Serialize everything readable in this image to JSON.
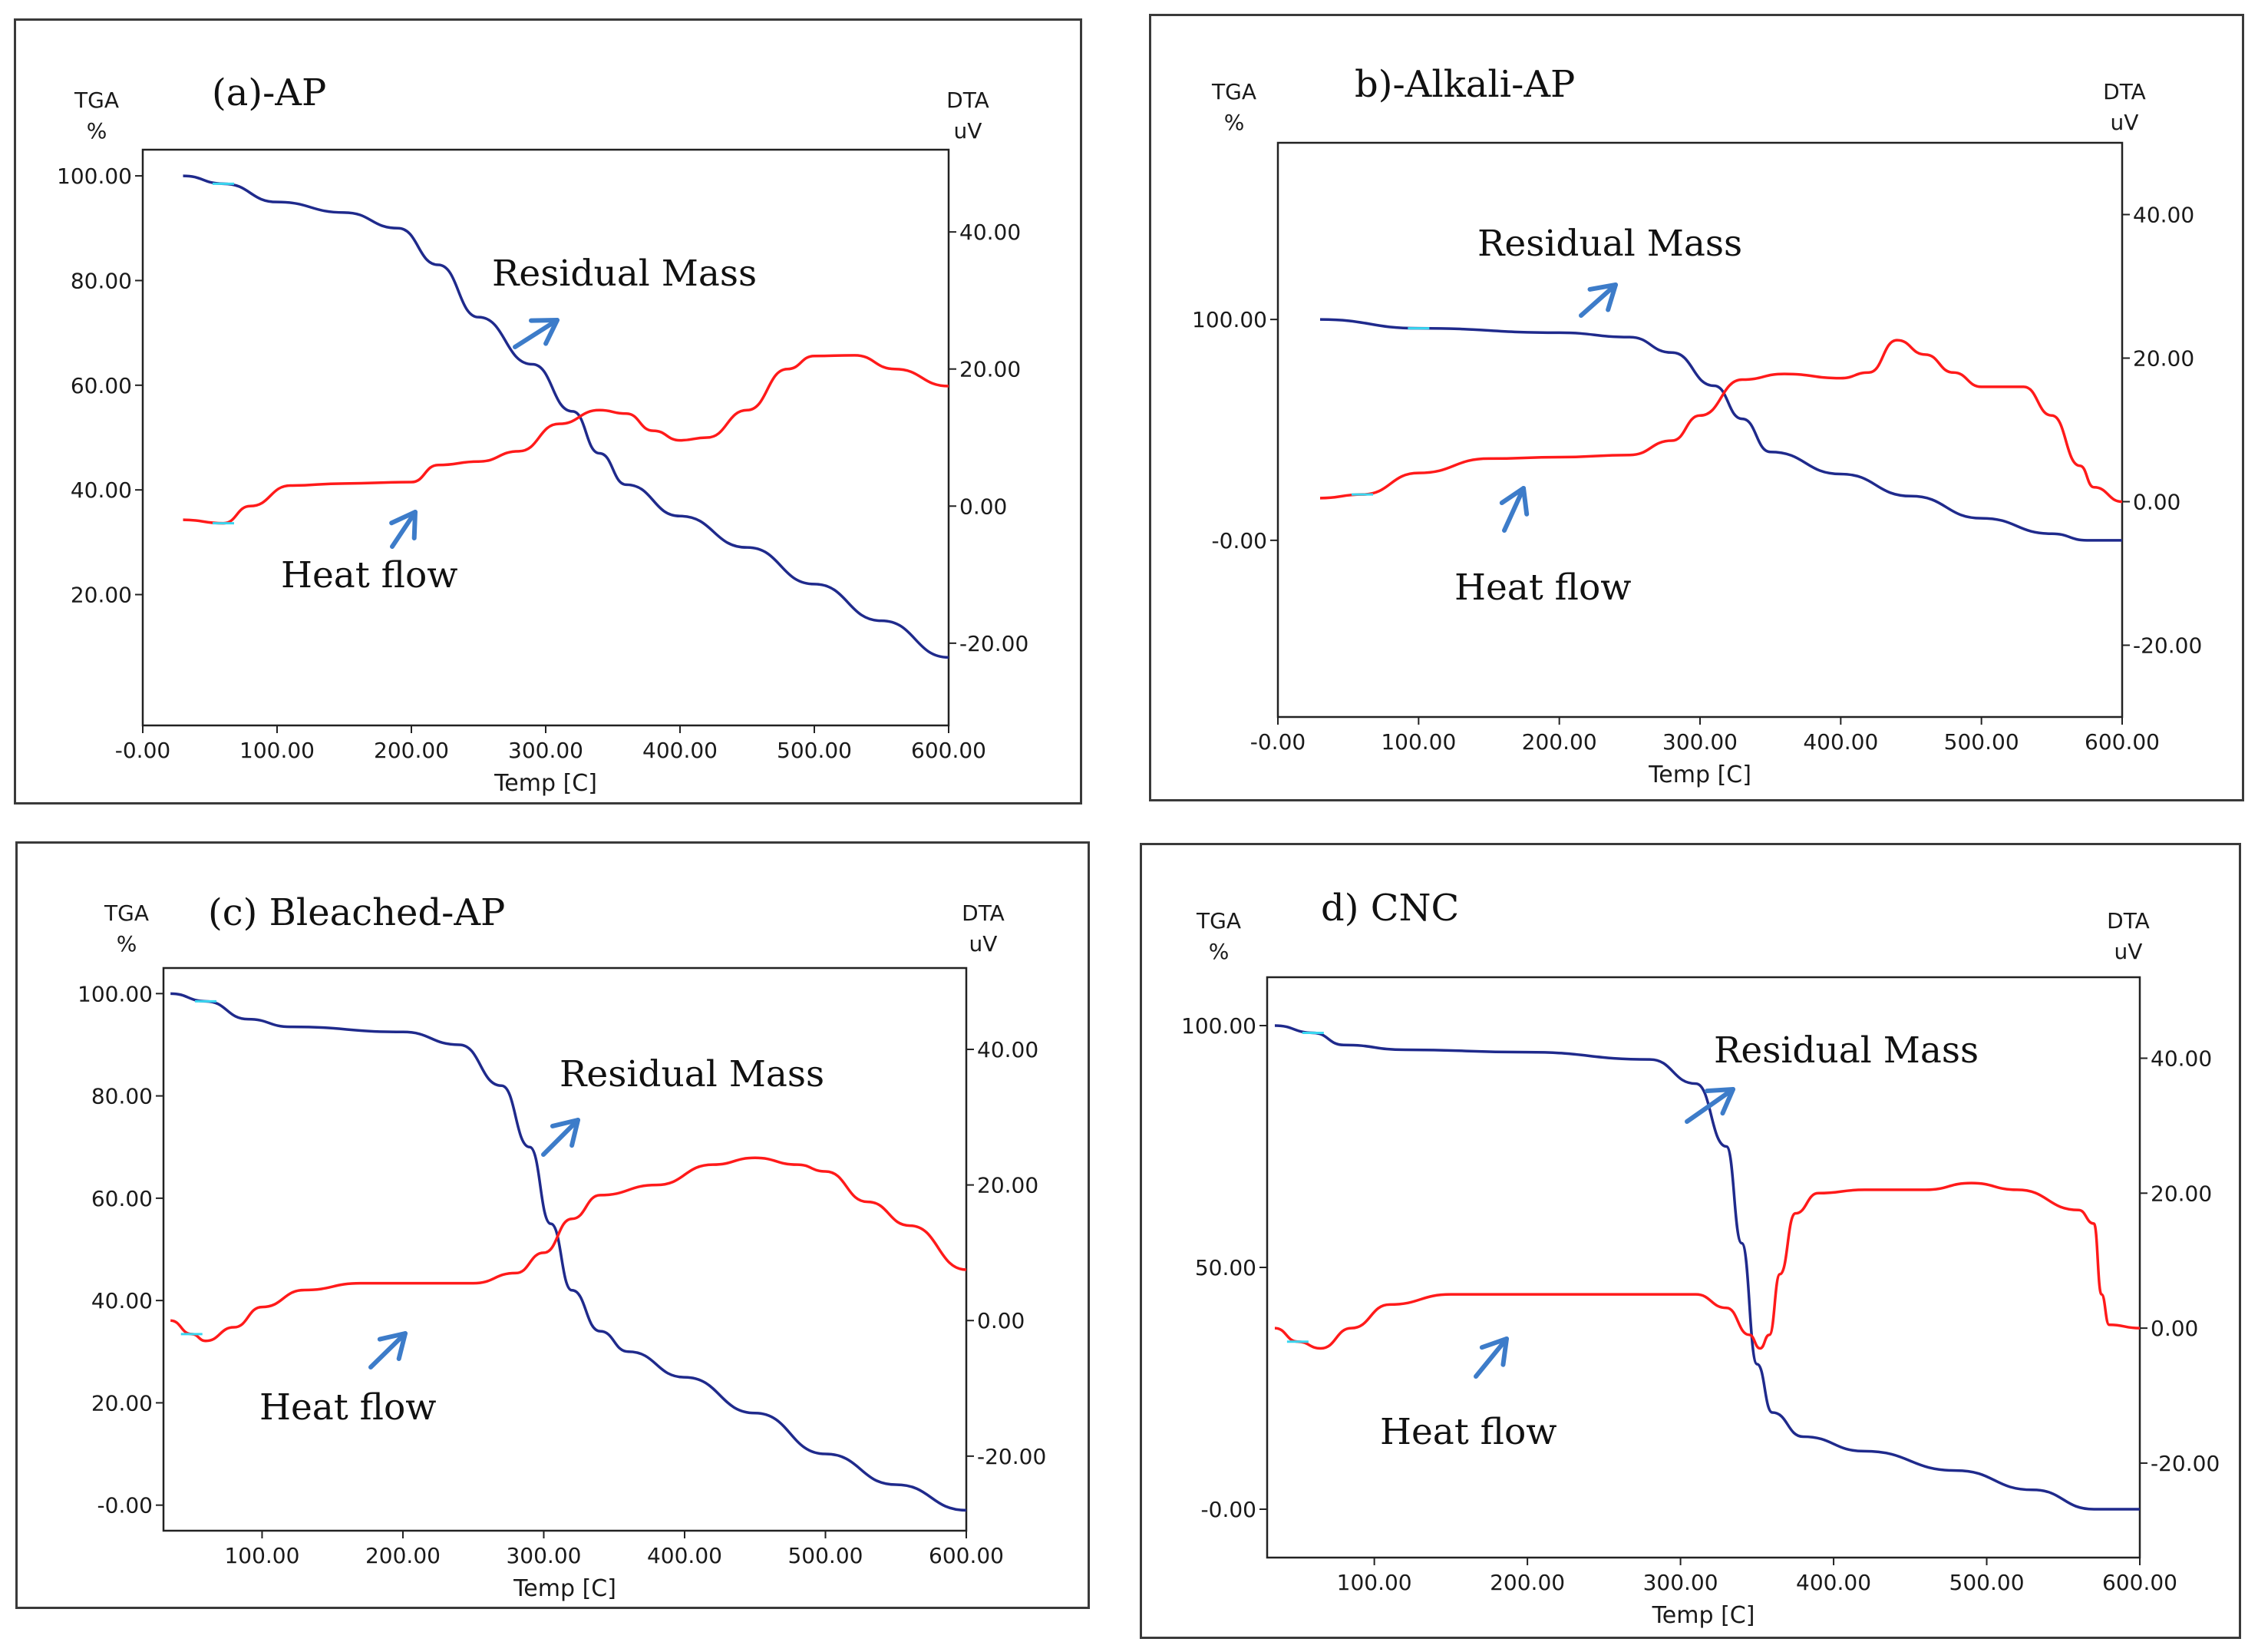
{
  "colors": {
    "tga": "#1f2a8c",
    "dta": "#ff1a1a",
    "arrow": "#3d7cc9",
    "marker": "#39d6f0",
    "frame": "#3a3a3a"
  },
  "chart_data": [
    {
      "type": "line",
      "title": "(a)-AP",
      "xlabel": "Temp [C]",
      "y_left_label": "TGA",
      "y_left_unit": "%",
      "y_right_label": "DTA",
      "y_right_unit": "uV",
      "xlim": [
        0,
        600
      ],
      "ylim_left": [
        -5,
        105
      ],
      "ylim_right": [
        -32,
        52
      ],
      "x_ticks": [
        "-0.00",
        "100.00",
        "200.00",
        "300.00",
        "400.00",
        "500.00",
        "600.00"
      ],
      "y_left_ticks": [
        "20.00",
        "40.00",
        "60.00",
        "80.00",
        "100.00"
      ],
      "y_right_ticks": [
        "-20.00",
        "0.00",
        "20.00",
        "40.00"
      ],
      "annotations": [
        "Residual  Mass",
        "Heat flow"
      ],
      "series": [
        {
          "name": "TGA",
          "axis": "left",
          "points": [
            [
              30,
              100
            ],
            [
              60,
              98.5
            ],
            [
              100,
              95
            ],
            [
              150,
              93
            ],
            [
              190,
              90
            ],
            [
              220,
              83
            ],
            [
              250,
              73
            ],
            [
              290,
              64
            ],
            [
              320,
              55
            ],
            [
              340,
              47
            ],
            [
              360,
              41
            ],
            [
              400,
              35
            ],
            [
              450,
              29
            ],
            [
              500,
              22
            ],
            [
              550,
              15
            ],
            [
              600,
              8
            ]
          ]
        },
        {
          "name": "DTA",
          "axis": "right",
          "points": [
            [
              30,
              -2
            ],
            [
              60,
              -2.5
            ],
            [
              80,
              0
            ],
            [
              110,
              3
            ],
            [
              150,
              3.3
            ],
            [
              200,
              3.5
            ],
            [
              220,
              6
            ],
            [
              250,
              6.5
            ],
            [
              280,
              8
            ],
            [
              310,
              12
            ],
            [
              340,
              14
            ],
            [
              360,
              13.5
            ],
            [
              380,
              11
            ],
            [
              400,
              9.6
            ],
            [
              420,
              10
            ],
            [
              450,
              14
            ],
            [
              480,
              20
            ],
            [
              500,
              21.9
            ],
            [
              530,
              22
            ],
            [
              560,
              20
            ],
            [
              600,
              17.5
            ]
          ]
        }
      ]
    },
    {
      "type": "line",
      "title": "b)-Alkali-AP",
      "xlabel": "Temp [C]",
      "y_left_label": "TGA",
      "y_left_unit": "%",
      "y_right_label": "DTA",
      "y_right_unit": "uV",
      "xlim": [
        0,
        600
      ],
      "ylim_left": [
        -80,
        180
      ],
      "ylim_right": [
        -30,
        50
      ],
      "x_ticks": [
        "-0.00",
        "100.00",
        "200.00",
        "300.00",
        "400.00",
        "500.00",
        "600.00"
      ],
      "y_left_ticks": [
        "-0.00",
        "100.00"
      ],
      "y_right_ticks": [
        "-20.00",
        "0.00",
        "20.00",
        "40.00"
      ],
      "annotations": [
        "Residual  Mass",
        "Heat flow"
      ],
      "series": [
        {
          "name": "TGA",
          "axis": "left",
          "points": [
            [
              30,
              100
            ],
            [
              100,
              96
            ],
            [
              200,
              94
            ],
            [
              250,
              92
            ],
            [
              280,
              85
            ],
            [
              310,
              70
            ],
            [
              330,
              55
            ],
            [
              350,
              40
            ],
            [
              400,
              30
            ],
            [
              450,
              20
            ],
            [
              500,
              10
            ],
            [
              550,
              3
            ],
            [
              575,
              0
            ],
            [
              600,
              0
            ]
          ]
        },
        {
          "name": "DTA",
          "axis": "right",
          "points": [
            [
              30,
              0.5
            ],
            [
              60,
              1
            ],
            [
              100,
              4
            ],
            [
              150,
              6
            ],
            [
              200,
              6.2
            ],
            [
              250,
              6.5
            ],
            [
              280,
              8.5
            ],
            [
              300,
              12
            ],
            [
              330,
              17
            ],
            [
              360,
              17.8
            ],
            [
              400,
              17.2
            ],
            [
              420,
              18
            ],
            [
              440,
              22.5
            ],
            [
              460,
              20.5
            ],
            [
              480,
              18
            ],
            [
              500,
              16
            ],
            [
              530,
              16
            ],
            [
              550,
              12
            ],
            [
              570,
              5
            ],
            [
              580,
              2
            ],
            [
              600,
              0
            ]
          ]
        }
      ]
    },
    {
      "type": "line",
      "title": "(c) Bleached-AP",
      "xlabel": "Temp [C]",
      "y_left_label": "TGA",
      "y_left_unit": "%",
      "y_right_label": "DTA",
      "y_right_unit": "uV",
      "xlim": [
        30,
        600
      ],
      "ylim_left": [
        -5,
        105
      ],
      "ylim_right": [
        -31,
        52
      ],
      "x_ticks": [
        "100.00",
        "200.00",
        "300.00",
        "400.00",
        "500.00",
        "600.00"
      ],
      "y_left_ticks": [
        "-0.00",
        "20.00",
        "40.00",
        "60.00",
        "80.00",
        "100.00"
      ],
      "y_right_ticks": [
        "-20.00",
        "0.00",
        "20.00",
        "40.00"
      ],
      "annotations": [
        "Residual  Mass",
        "Heat flow"
      ],
      "series": [
        {
          "name": "TGA",
          "axis": "left",
          "points": [
            [
              35,
              100
            ],
            [
              60,
              98.5
            ],
            [
              90,
              95
            ],
            [
              120,
              93.5
            ],
            [
              200,
              92.5
            ],
            [
              240,
              90
            ],
            [
              270,
              82
            ],
            [
              290,
              70
            ],
            [
              305,
              55
            ],
            [
              320,
              42
            ],
            [
              340,
              34
            ],
            [
              360,
              30
            ],
            [
              400,
              25
            ],
            [
              450,
              18
            ],
            [
              500,
              10
            ],
            [
              550,
              4
            ],
            [
              600,
              -1
            ]
          ]
        },
        {
          "name": "DTA",
          "axis": "right",
          "points": [
            [
              35,
              0
            ],
            [
              50,
              -2
            ],
            [
              60,
              -3
            ],
            [
              80,
              -1
            ],
            [
              100,
              2
            ],
            [
              130,
              4.5
            ],
            [
              170,
              5.5
            ],
            [
              200,
              5.5
            ],
            [
              250,
              5.5
            ],
            [
              280,
              7
            ],
            [
              300,
              10
            ],
            [
              320,
              15
            ],
            [
              340,
              18.5
            ],
            [
              380,
              20
            ],
            [
              420,
              23
            ],
            [
              450,
              24
            ],
            [
              480,
              23
            ],
            [
              500,
              22
            ],
            [
              530,
              17.5
            ],
            [
              560,
              14
            ],
            [
              600,
              7.5
            ]
          ]
        }
      ]
    },
    {
      "type": "line",
      "title": "d) CNC",
      "xlabel": "Temp [C]",
      "y_left_label": "TGA",
      "y_left_unit": "%",
      "y_right_label": "DTA",
      "y_right_unit": "uV",
      "xlim": [
        30,
        600
      ],
      "ylim_left": [
        -10,
        110
      ],
      "ylim_right": [
        -34,
        52
      ],
      "x_ticks": [
        "100.00",
        "200.00",
        "300.00",
        "400.00",
        "500.00",
        "600.00"
      ],
      "y_left_ticks": [
        "-0.00",
        "50.00",
        "100.00"
      ],
      "y_right_ticks": [
        "-20.00",
        "0.00",
        "20.00",
        "40.00"
      ],
      "annotations": [
        "Residual  Mass",
        "Heat flow"
      ],
      "series": [
        {
          "name": "TGA",
          "axis": "left",
          "points": [
            [
              35,
              100
            ],
            [
              60,
              98.5
            ],
            [
              80,
              96
            ],
            [
              120,
              95
            ],
            [
              200,
              94.5
            ],
            [
              280,
              93
            ],
            [
              310,
              88
            ],
            [
              330,
              75
            ],
            [
              340,
              55
            ],
            [
              350,
              30
            ],
            [
              360,
              20
            ],
            [
              380,
              15
            ],
            [
              420,
              12
            ],
            [
              480,
              8
            ],
            [
              530,
              4
            ],
            [
              570,
              0
            ],
            [
              600,
              0
            ]
          ]
        },
        {
          "name": "DTA",
          "axis": "right",
          "points": [
            [
              35,
              0
            ],
            [
              50,
              -2
            ],
            [
              65,
              -3
            ],
            [
              85,
              0
            ],
            [
              110,
              3.5
            ],
            [
              150,
              5
            ],
            [
              250,
              5
            ],
            [
              310,
              5
            ],
            [
              330,
              3
            ],
            [
              345,
              -1
            ],
            [
              352,
              -3
            ],
            [
              358,
              -1
            ],
            [
              365,
              8
            ],
            [
              375,
              17
            ],
            [
              390,
              20
            ],
            [
              420,
              20.5
            ],
            [
              460,
              20.5
            ],
            [
              490,
              21.5
            ],
            [
              520,
              20.5
            ],
            [
              560,
              17.5
            ],
            [
              570,
              15.5
            ],
            [
              575,
              5
            ],
            [
              580,
              0.5
            ],
            [
              600,
              0
            ]
          ]
        }
      ]
    }
  ]
}
